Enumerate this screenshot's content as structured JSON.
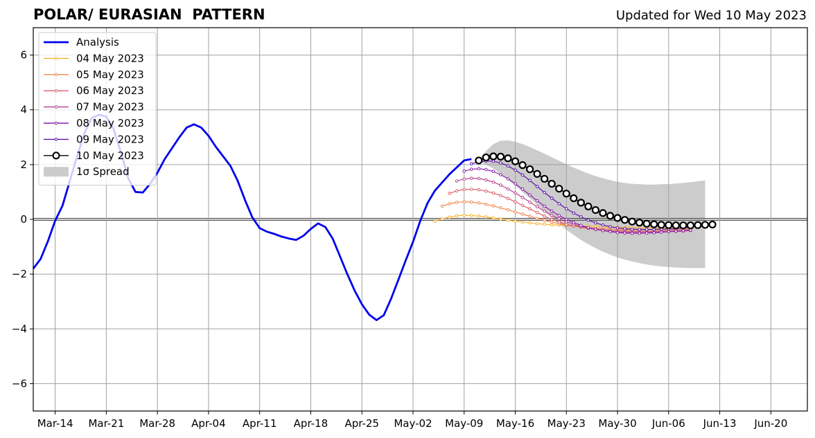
{
  "chart_data": {
    "type": "line",
    "title": "POLAR/ EURASIAN  PATTERN",
    "subtitle": "Updated for Wed 10 May 2023",
    "xlabel": "",
    "ylabel": "",
    "x_range": [
      "2023-03-11",
      "2023-06-25"
    ],
    "ylim": [
      -7,
      7
    ],
    "yticks": [
      -6,
      -4,
      -2,
      0,
      2,
      4,
      6
    ],
    "xticks": [
      {
        "date": "2023-03-14",
        "label": "Mar-14"
      },
      {
        "date": "2023-03-21",
        "label": "Mar-21"
      },
      {
        "date": "2023-03-28",
        "label": "Mar-28"
      },
      {
        "date": "2023-04-04",
        "label": "Apr-04"
      },
      {
        "date": "2023-04-11",
        "label": "Apr-11"
      },
      {
        "date": "2023-04-18",
        "label": "Apr-18"
      },
      {
        "date": "2023-04-25",
        "label": "Apr-25"
      },
      {
        "date": "2023-05-02",
        "label": "May-02"
      },
      {
        "date": "2023-05-09",
        "label": "May-09"
      },
      {
        "date": "2023-05-16",
        "label": "May-16"
      },
      {
        "date": "2023-05-23",
        "label": "May-23"
      },
      {
        "date": "2023-05-30",
        "label": "May-30"
      },
      {
        "date": "2023-06-06",
        "label": "Jun-06"
      },
      {
        "date": "2023-06-13",
        "label": "Jun-13"
      },
      {
        "date": "2023-06-20",
        "label": "Jun-20"
      }
    ],
    "grid": true,
    "legend_position": "top-left",
    "analysis": {
      "name": "Analysis",
      "color": "#0000ee",
      "start_date": "2023-03-11",
      "values": [
        -1.8,
        -1.45,
        -0.8,
        -0.05,
        0.5,
        1.4,
        2.3,
        3.15,
        3.7,
        3.82,
        3.75,
        3.3,
        2.45,
        1.5,
        1.0,
        0.98,
        1.3,
        1.7,
        2.2,
        2.6,
        3.0,
        3.35,
        3.47,
        3.35,
        3.05,
        2.65,
        2.3,
        1.95,
        1.4,
        0.7,
        0.07,
        -0.32,
        -0.45,
        -0.53,
        -0.63,
        -0.7,
        -0.75,
        -0.6,
        -0.35,
        -0.15,
        -0.28,
        -0.7,
        -1.35,
        -2.0,
        -2.6,
        -3.1,
        -3.48,
        -3.68,
        -3.5,
        -2.9,
        -2.2,
        -1.5,
        -0.82,
        -0.05,
        0.6,
        1.05,
        1.35,
        1.65,
        1.9,
        2.15,
        2.2
      ]
    },
    "forecasts": [
      {
        "name": "04 May 2023",
        "color": "#f9b32c",
        "start_date": "2023-05-05",
        "values": [
          -0.07,
          0.02,
          0.08,
          0.13,
          0.15,
          0.14,
          0.12,
          0.09,
          0.05,
          0.01,
          -0.03,
          -0.07,
          -0.1,
          -0.13,
          -0.16,
          -0.18,
          -0.2,
          -0.21,
          -0.22,
          -0.23,
          -0.24,
          -0.25,
          -0.26,
          -0.27,
          -0.28,
          -0.29,
          -0.3,
          -0.3,
          -0.31,
          -0.32,
          -0.32,
          -0.33,
          -0.33,
          -0.33,
          -0.33,
          -0.33
        ]
      },
      {
        "name": "05 May 2023",
        "color": "#f2844a",
        "start_date": "2023-05-06",
        "values": [
          0.48,
          0.57,
          0.62,
          0.64,
          0.63,
          0.6,
          0.55,
          0.49,
          0.42,
          0.35,
          0.27,
          0.19,
          0.11,
          0.03,
          -0.04,
          -0.1,
          -0.16,
          -0.21,
          -0.25,
          -0.28,
          -0.31,
          -0.33,
          -0.35,
          -0.36,
          -0.37,
          -0.38,
          -0.38,
          -0.38,
          -0.38,
          -0.38,
          -0.38,
          -0.38,
          -0.38,
          -0.37,
          -0.37
        ]
      },
      {
        "name": "06 May 2023",
        "color": "#d95f6b",
        "start_date": "2023-05-07",
        "values": [
          0.95,
          1.04,
          1.09,
          1.1,
          1.08,
          1.03,
          0.96,
          0.87,
          0.76,
          0.64,
          0.51,
          0.38,
          0.25,
          0.12,
          0.0,
          -0.1,
          -0.18,
          -0.24,
          -0.29,
          -0.33,
          -0.36,
          -0.39,
          -0.41,
          -0.42,
          -0.43,
          -0.44,
          -0.44,
          -0.44,
          -0.44,
          -0.43,
          -0.43,
          -0.42,
          -0.41,
          -0.4
        ]
      },
      {
        "name": "07 May 2023",
        "color": "#b6418f",
        "start_date": "2023-05-08",
        "values": [
          1.4,
          1.47,
          1.5,
          1.49,
          1.44,
          1.36,
          1.25,
          1.11,
          0.96,
          0.8,
          0.63,
          0.46,
          0.3,
          0.15,
          0.02,
          -0.09,
          -0.18,
          -0.26,
          -0.32,
          -0.37,
          -0.41,
          -0.44,
          -0.46,
          -0.47,
          -0.48,
          -0.48,
          -0.48,
          -0.47,
          -0.46,
          -0.45,
          -0.44,
          -0.43,
          -0.41
        ]
      },
      {
        "name": "08 May 2023",
        "color": "#8a1fa8",
        "start_date": "2023-05-09",
        "values": [
          1.76,
          1.83,
          1.85,
          1.82,
          1.75,
          1.63,
          1.48,
          1.3,
          1.1,
          0.89,
          0.68,
          0.48,
          0.3,
          0.14,
          0.0,
          -0.12,
          -0.22,
          -0.3,
          -0.36,
          -0.41,
          -0.45,
          -0.48,
          -0.5,
          -0.51,
          -0.51,
          -0.5,
          -0.49,
          -0.47,
          -0.45,
          -0.43,
          -0.41,
          -0.39
        ]
      },
      {
        "name": "09 May 2023",
        "color": "#5a12a8",
        "start_date": "2023-05-10",
        "values": [
          2.03,
          2.1,
          2.13,
          2.12,
          2.06,
          1.95,
          1.8,
          1.62,
          1.42,
          1.2,
          0.98,
          0.77,
          0.57,
          0.39,
          0.23,
          0.09,
          -0.03,
          -0.13,
          -0.21,
          -0.27,
          -0.31,
          -0.34,
          -0.36,
          -0.37,
          -0.37,
          -0.37,
          -0.36,
          -0.35,
          -0.34,
          -0.32,
          -0.3
        ]
      },
      {
        "name": "10 May 2023",
        "color": "#000000",
        "start_date": "2023-05-11",
        "values": [
          2.15,
          2.26,
          2.3,
          2.29,
          2.23,
          2.12,
          1.98,
          1.83,
          1.66,
          1.48,
          1.3,
          1.12,
          0.94,
          0.77,
          0.61,
          0.47,
          0.34,
          0.23,
          0.13,
          0.05,
          -0.02,
          -0.08,
          -0.12,
          -0.16,
          -0.18,
          -0.2,
          -0.21,
          -0.22,
          -0.22,
          -0.22,
          -0.21,
          -0.2,
          -0.19
        ]
      }
    ],
    "spread": {
      "name": "1σ Spread",
      "color": "#cccccc",
      "start_date": "2023-05-11",
      "upper": [
        2.2,
        2.5,
        2.75,
        2.87,
        2.88,
        2.83,
        2.75,
        2.64,
        2.52,
        2.4,
        2.27,
        2.14,
        2.01,
        1.89,
        1.78,
        1.67,
        1.58,
        1.5,
        1.43,
        1.37,
        1.33,
        1.3,
        1.28,
        1.27,
        1.27,
        1.28,
        1.29,
        1.31,
        1.33,
        1.36,
        1.39,
        1.42
      ],
      "lower": [
        2.1,
        2.0,
        1.85,
        1.65,
        1.45,
        1.23,
        1.0,
        0.77,
        0.53,
        0.29,
        0.05,
        -0.17,
        -0.38,
        -0.57,
        -0.75,
        -0.91,
        -1.05,
        -1.18,
        -1.29,
        -1.39,
        -1.47,
        -1.54,
        -1.6,
        -1.65,
        -1.69,
        -1.72,
        -1.74,
        -1.76,
        -1.77,
        -1.78,
        -1.78,
        -1.78
      ]
    }
  }
}
